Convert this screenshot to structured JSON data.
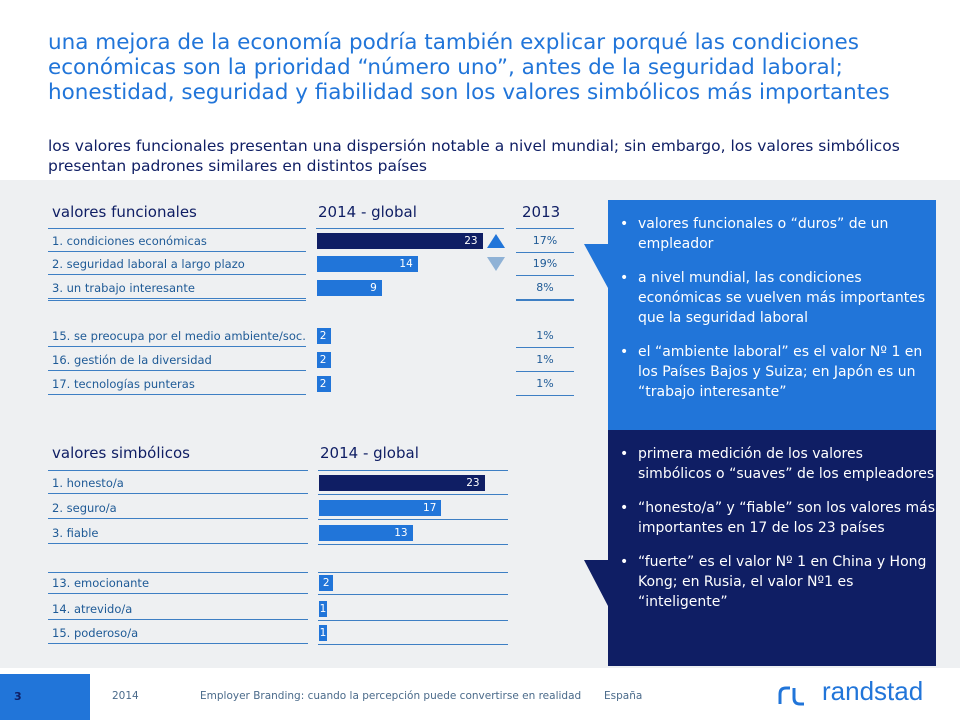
{
  "title": "una mejora de la economía podría también explicar porqué las condiciones económicas son la prioridad “número uno”, antes de la seguridad laboral; honestidad, seguridad y fiabilidad son los valores simbólicos más importantes",
  "subtitle": "los valores funcionales presentan una dispersión notable a nivel mundial; sin embargo, los valores simbólicos presentan padrones similares en distintos países",
  "functional": {
    "section_title": "valores funcionales",
    "col_global": "2014 - global",
    "col_prev": "2013",
    "rows": [
      {
        "label": "1. condiciones económicas",
        "value": 23,
        "value_label": "23",
        "prev": "17%",
        "trend": "up"
      },
      {
        "label": "2. seguridad laboral a largo plazo",
        "value": 14,
        "value_label": "14",
        "prev": "19%",
        "trend": "down"
      },
      {
        "label": "3. un trabajo interesante",
        "value": 9,
        "value_label": "9",
        "prev": "8%"
      },
      {
        "label": "15. se preocupa por el medio ambiente/soc.",
        "value": 2,
        "value_label": "2",
        "prev": "1%"
      },
      {
        "label": "16. gestión de la diversidad",
        "value": 2,
        "value_label": "2",
        "prev": "1%"
      },
      {
        "label": "17. tecnologías punteras",
        "value": 2,
        "value_label": "2",
        "prev": "1%"
      }
    ]
  },
  "symbolic": {
    "section_title": "valores simbólicos",
    "col_global": "2014 - global",
    "rows": [
      {
        "label": "1. honesto/a",
        "value": 23,
        "value_label": "23"
      },
      {
        "label": "2. seguro/a",
        "value": 17,
        "value_label": "17"
      },
      {
        "label": "3. fiable",
        "value": 13,
        "value_label": "13"
      },
      {
        "label": "13. emocionante",
        "value": 2,
        "value_label": "2"
      },
      {
        "label": "14. atrevido/a",
        "value": 1,
        "value_label": "1"
      },
      {
        "label": "15. poderoso/a",
        "value": 1,
        "value_label": "1"
      }
    ]
  },
  "panel_top": {
    "color": "#2175d9",
    "bullets": [
      "valores funcionales o “duros” de un empleador",
      "a nivel mundial, las condiciones económicas se vuelven más importantes que la seguridad laboral",
      "el “ambiente laboral” es el valor Nº 1 en los Países Bajos y Suiza; en Japón es un “trabajo interesante”"
    ]
  },
  "panel_bottom": {
    "color": "#0f1e64",
    "bullets": [
      "primera medición de los valores simbólicos o “suaves” de los empleadores",
      "“honesto/a” y “fiable” son los valores más importantes en 17 de los 23 países",
      "“fuerte” es el valor Nº 1 en China y Hong Kong; en Rusia, el valor Nº1 es “inteligente”"
    ]
  },
  "footer": {
    "page": "3",
    "year": "2014",
    "text": "Employer Branding: cuando la percepción puede convertirse en realidad",
    "country": "España",
    "logo": "randstad"
  },
  "colors": {
    "dark_blue": "#0f1e64",
    "blue": "#2175d9",
    "arrow_up": "#2175d9",
    "arrow_down": "#8fb2d6"
  }
}
